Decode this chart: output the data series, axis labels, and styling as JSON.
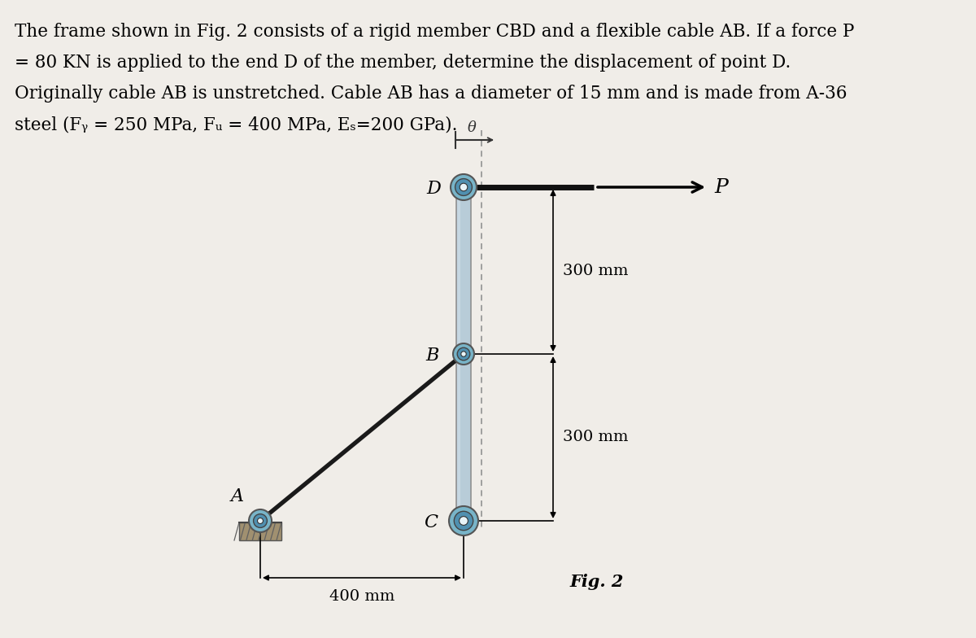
{
  "background_color": "#f0ede8",
  "text_color": "#000000",
  "title_text": "The frame shown in Fig. 2 consists of a rigid member CBD and a flexible cable AB. If a force P\n= 80 KN is applied to the end D of the member, determine the displacement of point D.\nOriginally cable AB is unstretched. Cable AB has a diameter of 15 mm and is made from A-36\nsteel (Fᵧ = 250 MPa, Fᵤ = 400 MPa, Eₛ=200 GPa).",
  "title_fontsize": 15.5,
  "fig_label": "Fig. 2",
  "dim_300_top": "300 mm",
  "dim_300_bot": "300 mm",
  "dim_400": "400 mm",
  "label_A": "A",
  "label_B": "B",
  "label_C": "C",
  "label_D": "D",
  "label_P": "P",
  "label_theta": "θ",
  "support_color": "#78b4c8",
  "support_color2": "#5090b0",
  "member_color": "#b8ccd8",
  "member_edge": "#909090",
  "cable_color": "#1a1a1a",
  "arrow_color": "#000000",
  "dim_color": "#000000",
  "dashed_color": "#999999",
  "pin_inner": "#1a5070",
  "ground_color": "#a09070",
  "ground_hatch": "#606060"
}
